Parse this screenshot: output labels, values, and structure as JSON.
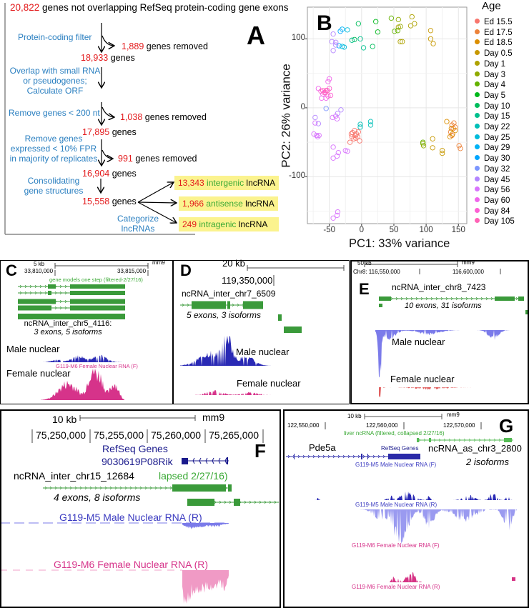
{
  "panel_a": {
    "letter": "A",
    "start_count": "20,822",
    "start_text": " genes not overlapping RefSeq protein-coding gene exons",
    "steps": [
      {
        "label": [
          "Protein-coding filter"
        ],
        "removed_count": "1,889",
        "removed_text": " genes removed",
        "result_count": "18,933",
        "result_text": " genes"
      },
      {
        "label": [
          "Overlap with small RNA",
          "or pseudogenes;",
          "Calculate ORF"
        ]
      },
      {
        "label": [
          "Remove genes < 200 nt"
        ],
        "removed_count": "1,038",
        "removed_text": " genes removed",
        "result_count": "17,895",
        "result_text": " genes"
      },
      {
        "label": [
          "Remove genes",
          "expressed < 10% FPR",
          "in majority of replicates"
        ],
        "removed_count": "991",
        "removed_text": " genes removed",
        "result_count": "16,904",
        "result_text": " genes"
      },
      {
        "label": [
          "Consolidating",
          "gene structures"
        ],
        "result_count": "15,558",
        "result_text": " genes"
      }
    ],
    "categorize_label": [
      "Categorize",
      "lncRNAs"
    ],
    "categories": [
      {
        "count": "13,343",
        "type": "intergenic",
        "suffix": " lncRNA"
      },
      {
        "count": "1,966",
        "type": "antisense",
        "suffix": " lncRNA"
      },
      {
        "count": "249",
        "type": "intragenic",
        "suffix": " lncRNA"
      }
    ]
  },
  "chart_data": {
    "type": "scatter",
    "panel_letter": "B",
    "title": "",
    "xlabel": "PC1: 33% variance",
    "ylabel": "PC2: 26% variance",
    "legend_title": "Age",
    "legend_position": "right",
    "grid": true,
    "xlim": [
      -84,
      163
    ],
    "ylim": [
      -168,
      146
    ],
    "x_ticks": [
      -50,
      0,
      50,
      100,
      150
    ],
    "y_ticks": [
      -100,
      0,
      100
    ],
    "series": [
      {
        "name": "Ed 15.5",
        "color": "#F8766D",
        "points": [
          [
            -10,
            -40
          ],
          [
            -12,
            -45
          ],
          [
            -8,
            -38
          ],
          [
            -15,
            -42
          ],
          [
            -5,
            -35
          ],
          [
            -18,
            -50
          ],
          [
            -3,
            -48
          ],
          [
            -14,
            -36
          ],
          [
            -9,
            -44
          ],
          [
            -6,
            -42
          ],
          [
            -11,
            -33
          ],
          [
            -16,
            -38
          ]
        ]
      },
      {
        "name": "Ed 17.5",
        "color": "#EC8239",
        "points": [
          [
            140,
            -25
          ],
          [
            142,
            -30
          ],
          [
            138,
            -35
          ],
          [
            145,
            -28
          ],
          [
            140,
            -40
          ],
          [
            151,
            -55
          ],
          [
            153,
            -59
          ],
          [
            143,
            -22
          ]
        ]
      },
      {
        "name": "Ed 18.5",
        "color": "#DB8E00",
        "points": [
          [
            132,
            -20
          ],
          [
            137,
            -42
          ],
          [
            141,
            -38
          ],
          [
            145,
            -33
          ],
          [
            139,
            -30
          ]
        ]
      },
      {
        "name": "Day 0.5",
        "color": "#C79800",
        "points": [
          [
            110,
            -45
          ],
          [
            110,
            -58
          ],
          [
            125,
            -62
          ],
          [
            125,
            -66
          ],
          [
            107,
            112
          ],
          [
            107,
            100
          ],
          [
            111,
            93
          ]
        ]
      },
      {
        "name": "Day 1",
        "color": "#AEA200",
        "points": [
          [
            78,
            132
          ],
          [
            82,
            122
          ],
          [
            76,
            119
          ],
          [
            57,
            117
          ],
          [
            60,
            96
          ],
          [
            63,
            96
          ]
        ]
      },
      {
        "name": "Day 3",
        "color": "#8FAA00",
        "points": [
          [
            60,
            118
          ],
          [
            57,
            128
          ],
          [
            95,
            -52
          ],
          [
            96,
            -55
          ]
        ]
      },
      {
        "name": "Day 4",
        "color": "#64B200",
        "points": [
          [
            46,
            130
          ],
          [
            56,
            112
          ],
          [
            51,
            111
          ],
          [
            95,
            -50
          ]
        ]
      },
      {
        "name": "Day 5",
        "color": "#00B81B",
        "points": [
          [
            22,
            125
          ],
          [
            25,
            110
          ]
        ]
      },
      {
        "name": "Day 10",
        "color": "#00BD5C",
        "points": [
          [
            17,
            89
          ],
          [
            -5,
            122
          ],
          [
            -11,
            99
          ]
        ]
      },
      {
        "name": "Day 15",
        "color": "#00C08D",
        "points": [
          [
            -2,
            100
          ],
          [
            -15,
            98
          ],
          [
            3,
            87
          ]
        ]
      },
      {
        "name": "Day 22",
        "color": "#00BFB7",
        "points": [
          [
            -2,
            -24
          ],
          [
            14,
            -20
          ],
          [
            14,
            -25
          ],
          [
            -2,
            -28
          ]
        ]
      },
      {
        "name": "Day 25",
        "color": "#00BBDA",
        "points": [
          [
            -22,
            113
          ],
          [
            -30,
            89
          ],
          [
            -27,
            88
          ]
        ]
      },
      {
        "name": "Day 29",
        "color": "#00B3F5",
        "points": [
          [
            -35,
            90
          ],
          [
            -30,
            114
          ]
        ]
      },
      {
        "name": "Day 30",
        "color": "#00A6FF",
        "points": [
          [
            -33,
            111
          ]
        ]
      },
      {
        "name": "Day 32",
        "color": "#7C96FF",
        "points": [
          [
            -55,
            -1
          ]
        ]
      },
      {
        "name": "Day 45",
        "color": "#B385FF",
        "points": [
          [
            -44,
            107
          ],
          [
            -46,
            96
          ],
          [
            -44,
            83
          ],
          [
            -40,
            95
          ],
          [
            -40,
            91
          ],
          [
            -72,
            -14
          ],
          [
            -67,
            -23
          ],
          [
            -37,
            -8
          ],
          [
            -32,
            -3
          ]
        ]
      },
      {
        "name": "Day 56",
        "color": "#D874FD",
        "points": [
          [
            -44,
            -57
          ],
          [
            -44,
            -73
          ],
          [
            -38,
            -70
          ],
          [
            -36,
            -65
          ],
          [
            -22,
            -63
          ],
          [
            -25,
            -62
          ],
          [
            -45,
            -14
          ],
          [
            -40,
            -12
          ],
          [
            -38,
            -16
          ],
          [
            -70,
            -40
          ],
          [
            -74,
            -38
          ],
          [
            -68,
            -42
          ],
          [
            -66,
            -40
          ],
          [
            -44,
            -160
          ],
          [
            -38,
            -156
          ],
          [
            -37,
            -151
          ],
          [
            -72,
            -22
          ]
        ]
      },
      {
        "name": "Day 60",
        "color": "#EF67EB",
        "points": [
          [
            -50,
            42
          ],
          [
            -52,
            38
          ],
          [
            -60,
            20
          ],
          [
            -62,
            14
          ],
          [
            -55,
            14
          ],
          [
            -67,
            28
          ]
        ]
      },
      {
        "name": "Day 84",
        "color": "#FD61D3",
        "points": [
          [
            -55,
            25
          ],
          [
            -58,
            22
          ],
          [
            -50,
            28
          ],
          [
            -48,
            18
          ],
          [
            -52,
            17
          ],
          [
            -63,
            24
          ]
        ]
      },
      {
        "name": "Day 105",
        "color": "#FF63B6",
        "points": [
          [
            -60,
            25
          ],
          [
            -56,
            22
          ],
          [
            -53,
            25
          ]
        ]
      }
    ]
  },
  "panel_c": {
    "letter": "C",
    "scale": "5 kb",
    "assembly": "mm9",
    "coord_left": "33,810,000",
    "coord_right": "33,815,000",
    "track_label": "gene models one step (filtered-2/27/16)",
    "gene_name": "ncRNA_inter_chr5_4116:",
    "gene_info": "3 exons, 5 isoforms",
    "male_label": "Male nuclear",
    "female_track_label": "G119-M6 Female Nuclear RNA (F)",
    "female_label": "Female nuclear"
  },
  "panel_d": {
    "letter": "D",
    "scale": "20 kb",
    "coord": "119,350,000",
    "gene_name": "ncRNA_inter_chr7_6509",
    "gene_info": "5 exons, 3 isoforms",
    "male_label": "Male nuclear",
    "female_label": "Female nuclear"
  },
  "panel_e": {
    "letter": "E",
    "scale": "50 kb",
    "assembly": "mm9",
    "coord_left": "Chr8: 116,550,000",
    "coord_right": "116,600,000",
    "gene_name": "ncRNA_inter_chr8_7423",
    "gene_info": "10 exons, 31 isoforms",
    "male_label": "Male nuclear",
    "female_label": "Female nuclear"
  },
  "panel_f": {
    "letter": "F",
    "scale": "10 kb",
    "assembly": "mm9",
    "coords": [
      "75,250,000",
      "75,255,000",
      "75,260,000",
      "75,265,000"
    ],
    "refseq_label": "RefSeq Genes",
    "refseq_gene": "9030619P08Rik",
    "gene_name": "ncRNA_inter_chr15_12684",
    "track_label": "lapsed 2/27/16)",
    "gene_info": "4 exons, 8 isoforms",
    "male_track": "G119-M5 Male Nuclear RNA (R)",
    "female_track": "G119-M6 Female Nuclear RNA (R)"
  },
  "panel_g": {
    "letter": "G",
    "scale": "10 kb",
    "assembly": "mm9",
    "coords": [
      "122,550,000",
      "122,560,000",
      "122,570,000"
    ],
    "track_label": "liver ncRNA (filtered, collapsed 2/27/16)",
    "refseq_gene": "Pde5a",
    "refseq_label": "RefSeq Genes",
    "gene_name": "ncRNA_as_chr3_2800",
    "gene_info": "2 isoforms",
    "tracks": [
      "G119-M5 Male Nuclear RNA (F)",
      "G119-M5 Male Nuclear RNA (R)",
      "G119-M6 Female Nuclear RNA (F)",
      "G119-M6 Female Nuclear RNA (R)"
    ]
  }
}
